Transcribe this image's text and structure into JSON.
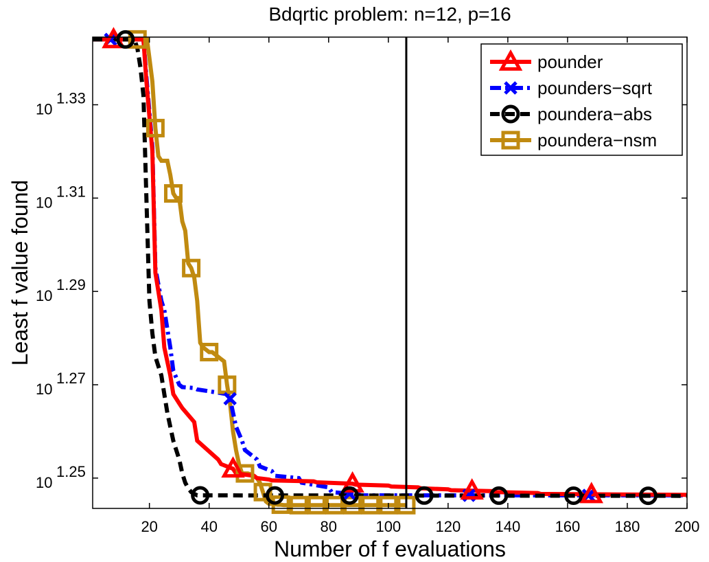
{
  "chart_data": {
    "type": "line",
    "title": "Bdqrtic problem: n=12, p=16",
    "xlabel": "Number of f evaluations",
    "ylabel": "Least f value found",
    "xlim": [
      1,
      200
    ],
    "ylim_log10": [
      1.2435,
      1.3445
    ],
    "xticks": [
      20,
      40,
      60,
      80,
      100,
      120,
      140,
      160,
      180,
      200
    ],
    "yticks": [
      {
        "base": "10",
        "exp": "1.25",
        "log10": 1.25
      },
      {
        "base": "10",
        "exp": "1.27",
        "log10": 1.27
      },
      {
        "base": "10",
        "exp": "1.29",
        "log10": 1.29
      },
      {
        "base": "10",
        "exp": "1.31",
        "log10": 1.31
      },
      {
        "base": "10",
        "exp": "1.33",
        "log10": 1.33
      }
    ],
    "vertical_line_x": 106,
    "legend_position": "top-right",
    "series": [
      {
        "name": "pounder",
        "color": "#ff0000",
        "dash": "solid",
        "marker": "triangle",
        "marker_every": 40,
        "marker_start": 8,
        "x": [
          1,
          18,
          19,
          21,
          22,
          24,
          25,
          27,
          28,
          30,
          31,
          35,
          36,
          43,
          44,
          48,
          49,
          55,
          56,
          60,
          61,
          75,
          76,
          88,
          89,
          100,
          101,
          110,
          111,
          120,
          121,
          135,
          136,
          150,
          151,
          200
        ],
        "log10y": [
          1.344,
          1.344,
          1.335,
          1.32,
          1.294,
          1.286,
          1.278,
          1.272,
          1.268,
          1.266,
          1.265,
          1.262,
          1.258,
          1.254,
          1.253,
          1.252,
          1.251,
          1.2505,
          1.25,
          1.2497,
          1.2495,
          1.2493,
          1.2491,
          1.2488,
          1.2486,
          1.2484,
          1.2482,
          1.248,
          1.2478,
          1.2476,
          1.2474,
          1.2472,
          1.247,
          1.2468,
          1.2466,
          1.2464
        ]
      },
      {
        "name": "pounders−sqrt",
        "color": "#0000ff",
        "dash": "dashdot",
        "marker": "x",
        "marker_every": 40,
        "marker_start": 7,
        "x": [
          1,
          18,
          19,
          21,
          22,
          24,
          25,
          27,
          28,
          30,
          31,
          35,
          36,
          46,
          47,
          48,
          49,
          51,
          52,
          56,
          57,
          61,
          62,
          70,
          71,
          80,
          81,
          90,
          91,
          200
        ],
        "log10y": [
          1.344,
          1.344,
          1.336,
          1.321,
          1.295,
          1.288,
          1.286,
          1.278,
          1.273,
          1.27,
          1.2695,
          1.2693,
          1.269,
          1.268,
          1.267,
          1.264,
          1.261,
          1.258,
          1.256,
          1.254,
          1.2525,
          1.2515,
          1.2505,
          1.25,
          1.249,
          1.248,
          1.247,
          1.2465,
          1.2463,
          1.2463
        ]
      },
      {
        "name": "poundera−abs",
        "color": "#000000",
        "dash": "dashed",
        "marker": "circle",
        "marker_every": 25,
        "marker_start": 12,
        "x": [
          1,
          15,
          16,
          17,
          18,
          19,
          20,
          21,
          22,
          23,
          24,
          25,
          26,
          27,
          28,
          29,
          30,
          31,
          32,
          33,
          34,
          35,
          36,
          200
        ],
        "log10y": [
          1.344,
          1.344,
          1.342,
          1.338,
          1.332,
          1.31,
          1.288,
          1.281,
          1.276,
          1.274,
          1.272,
          1.268,
          1.264,
          1.261,
          1.258,
          1.256,
          1.254,
          1.251,
          1.249,
          1.2478,
          1.247,
          1.2466,
          1.2463,
          1.2462
        ]
      },
      {
        "name": "poundera−nsm",
        "color": "#c08a10",
        "dash": "solid",
        "marker": "square",
        "marker_every": 6,
        "marker_start": 16,
        "x": [
          1,
          16,
          17,
          19,
          20,
          21,
          22,
          23,
          24,
          26,
          27,
          28,
          29,
          30,
          31,
          32,
          33,
          34,
          35,
          36,
          37,
          38,
          39,
          40,
          41,
          42,
          43,
          44,
          45,
          46,
          47,
          48,
          49,
          50,
          51,
          52,
          53,
          54,
          55,
          56,
          57,
          58,
          59,
          60,
          61,
          62,
          63,
          64,
          65,
          66,
          67,
          68,
          70,
          72,
          74,
          76,
          78,
          80,
          82,
          84,
          86,
          88,
          90,
          92,
          94,
          96,
          98,
          100,
          102,
          104,
          106
        ],
        "log10y": [
          1.344,
          1.344,
          1.345,
          1.345,
          1.34,
          1.335,
          1.325,
          1.319,
          1.318,
          1.318,
          1.315,
          1.311,
          1.31,
          1.31,
          1.305,
          1.303,
          1.296,
          1.295,
          1.293,
          1.288,
          1.279,
          1.278,
          1.2775,
          1.277,
          1.277,
          1.2765,
          1.276,
          1.2755,
          1.275,
          1.27,
          1.266,
          1.26,
          1.256,
          1.253,
          1.251,
          1.251,
          1.251,
          1.2508,
          1.2505,
          1.25,
          1.249,
          1.247,
          1.245,
          1.2445,
          1.2445,
          1.2444,
          1.2443,
          1.2443,
          1.2442,
          1.2442,
          1.2442,
          1.2442,
          1.2442,
          1.2442,
          1.2442,
          1.2442,
          1.2442,
          1.2442,
          1.2442,
          1.2442,
          1.2442,
          1.2442,
          1.2442,
          1.2442,
          1.2442,
          1.2442,
          1.2442,
          1.2442,
          1.2442,
          1.2442,
          1.2442
        ]
      }
    ]
  }
}
